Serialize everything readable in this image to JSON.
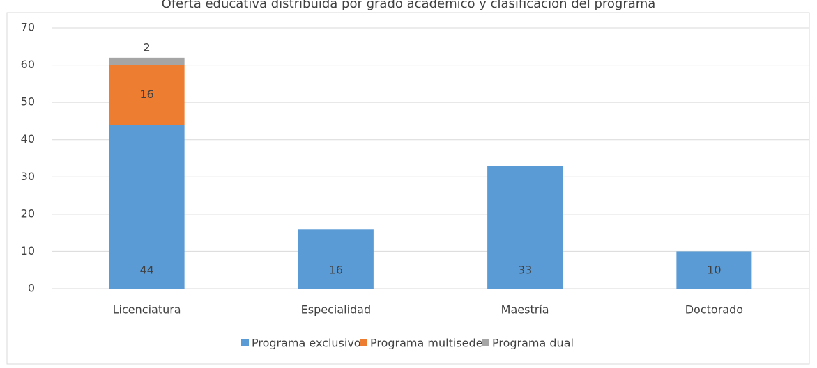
{
  "chart_data": {
    "type": "stacked_bar",
    "title": "Oferta educativa distribuida por grado académico y clasificación del programa",
    "categories": [
      "Licenciatura",
      "Especialidad",
      "Maestría",
      "Doctorado"
    ],
    "series": [
      {
        "name": "Programa exclusivo",
        "color": "#5b9bd5",
        "values": [
          44,
          16,
          33,
          10
        ]
      },
      {
        "name": "Programa multisede",
        "color": "#ed7d31",
        "values": [
          16,
          null,
          null,
          null
        ]
      },
      {
        "name": "Programa dual",
        "color": "#a5a5a5",
        "values": [
          2,
          null,
          null,
          null
        ]
      }
    ],
    "ylim": [
      0,
      70
    ],
    "yticks": [
      0,
      10,
      20,
      30,
      40,
      50,
      60,
      70
    ],
    "grid": true,
    "legend": "bottom"
  }
}
